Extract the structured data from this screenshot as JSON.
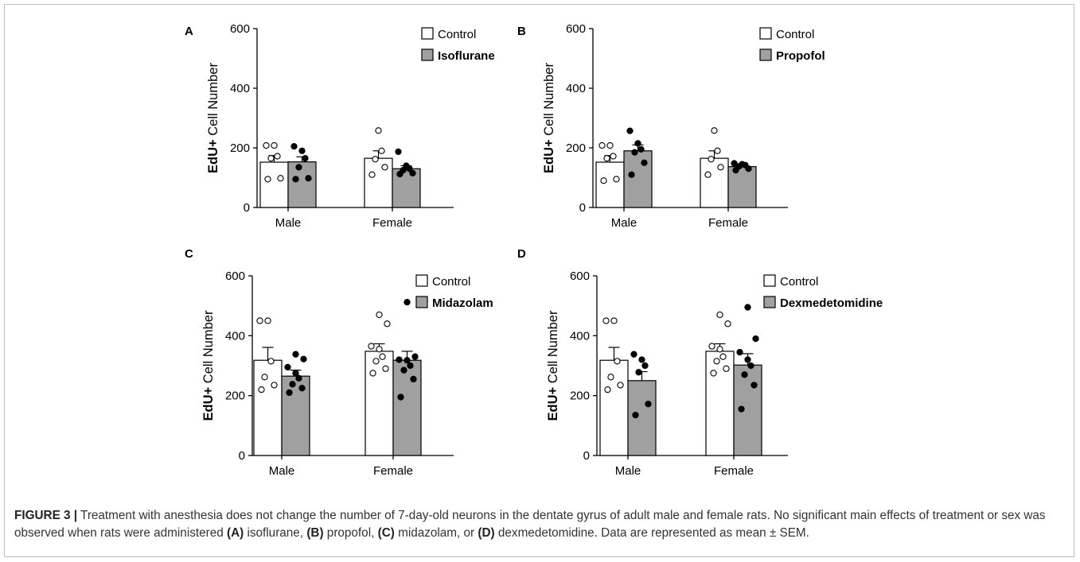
{
  "figure": {
    "y_axis_label": "EdU+ Cell Number",
    "categories": [
      "Male",
      "Female"
    ],
    "control_label": "Control",
    "colors": {
      "control": "#ffffff",
      "treated": "#a0a0a0",
      "stroke": "#000000"
    }
  },
  "chart_data": [
    {
      "panel": "A",
      "type": "bar",
      "categories": [
        "Male",
        "Female"
      ],
      "ylabel": "EdU+ Cell Number",
      "ylim": [
        0,
        600
      ],
      "yticks": [
        0,
        200,
        400,
        600
      ],
      "legend": [
        "Control",
        "Isoflurane"
      ],
      "series": [
        {
          "name": "Control",
          "values": [
            152,
            165
          ],
          "sem": [
            22,
            25
          ],
          "points": [
            [
              95,
              98,
              165,
              172,
              208,
              208
            ],
            [
              110,
              135,
              162,
              190,
              258
            ]
          ]
        },
        {
          "name": "Isoflurane",
          "values": [
            153,
            130
          ],
          "sem": [
            17,
            10
          ],
          "points": [
            [
              95,
              98,
              135,
              165,
              190,
              205
            ],
            [
              112,
              115,
              125,
              130,
              140,
              187
            ]
          ]
        }
      ]
    },
    {
      "panel": "B",
      "type": "bar",
      "categories": [
        "Male",
        "Female"
      ],
      "ylabel": "EdU+ Cell Number",
      "ylim": [
        0,
        600
      ],
      "yticks": [
        0,
        200,
        400,
        600
      ],
      "legend": [
        "Control",
        "Propofol"
      ],
      "series": [
        {
          "name": "Control",
          "values": [
            152,
            165
          ],
          "sem": [
            22,
            25
          ],
          "points": [
            [
              90,
              95,
              165,
              172,
              208,
              208
            ],
            [
              110,
              135,
              162,
              190,
              258
            ]
          ]
        },
        {
          "name": "Propofol",
          "values": [
            190,
            137
          ],
          "sem": [
            20,
            7
          ],
          "points": [
            [
              110,
              150,
              185,
              195,
              215,
              257
            ],
            [
              125,
              130,
              138,
              142,
              145,
              148
            ]
          ]
        }
      ]
    },
    {
      "panel": "C",
      "type": "bar",
      "categories": [
        "Male",
        "Female"
      ],
      "ylabel": "EdU+ Cell Number",
      "ylim": [
        0,
        600
      ],
      "yticks": [
        0,
        200,
        400,
        600
      ],
      "legend": [
        "Control",
        "Midazolam"
      ],
      "series": [
        {
          "name": "Control",
          "values": [
            318,
            348
          ],
          "sem": [
            43,
            25
          ],
          "points": [
            [
              220,
              235,
              262,
              315,
              450,
              450
            ],
            [
              275,
              290,
              315,
              330,
              355,
              365,
              440,
              470
            ]
          ]
        },
        {
          "name": "Midazolam",
          "values": [
            265,
            318
          ],
          "sem": [
            20,
            30
          ],
          "points": [
            [
              210,
              225,
              238,
              258,
              275,
              295,
              322,
              338
            ],
            [
              195,
              255,
              285,
              300,
              318,
              320,
              330,
              512
            ]
          ]
        }
      ]
    },
    {
      "panel": "D",
      "type": "bar",
      "categories": [
        "Male",
        "Female"
      ],
      "ylabel": "EdU+ Cell Number",
      "ylim": [
        0,
        600
      ],
      "yticks": [
        0,
        200,
        400,
        600
      ],
      "legend": [
        "Control",
        "Dexmedetomidine"
      ],
      "series": [
        {
          "name": "Control",
          "values": [
            318,
            348
          ],
          "sem": [
            43,
            25
          ],
          "points": [
            [
              220,
              235,
              262,
              315,
              450,
              450
            ],
            [
              275,
              290,
              315,
              330,
              355,
              365,
              440,
              470
            ]
          ]
        },
        {
          "name": "Dexmedetomidine",
          "values": [
            250,
            302
          ],
          "sem": [
            30,
            38
          ],
          "points": [
            [
              135,
              172,
              278,
              300,
              320,
              338
            ],
            [
              155,
              235,
              270,
              300,
              320,
              345,
              390,
              495
            ]
          ]
        }
      ]
    }
  ],
  "caption": {
    "label": "FIGURE 3 |",
    "p1": " Treatment with anesthesia does not change the number of 7-day-old neurons in the dentate gyrus of adult male and female rats. No significant main effects of treatment or sex was observed when rats were administered ",
    "tA": "(A)",
    "p2": " isoflurane, ",
    "tB": "(B)",
    "p3": " propofol, ",
    "tC": "(C)",
    "p4": " midazolam, or ",
    "tD": "(D)",
    "p5": " dexmedetomidine. Data are represented as mean ± SEM."
  }
}
